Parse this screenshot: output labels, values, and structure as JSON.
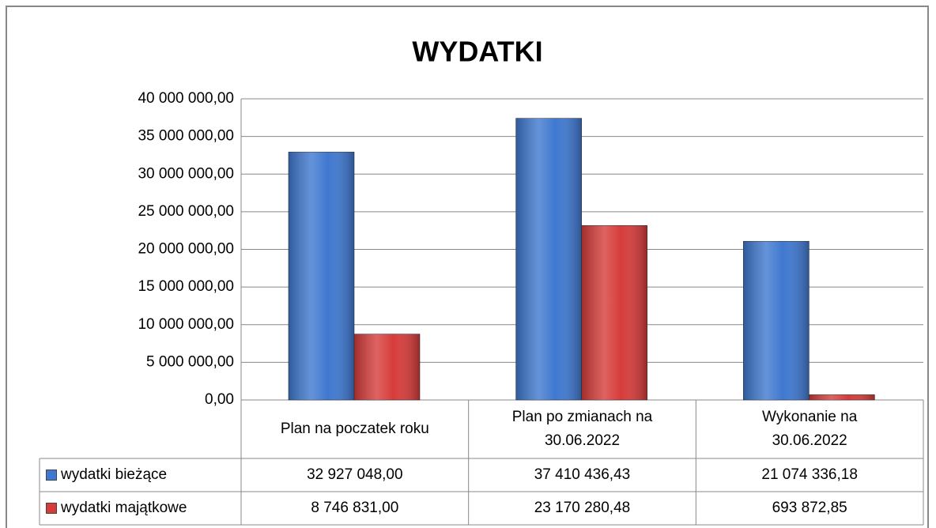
{
  "chart_data": {
    "type": "bar",
    "title": "WYDATKI",
    "categories": [
      "Plan na poczatek roku",
      "Plan po zmianach na 30.06.2022",
      "Wykonanie na 30.06.2022"
    ],
    "series": [
      {
        "name": "wydatki bieżące",
        "color": "#3f78d0",
        "values": [
          32927048.0,
          37410436.43,
          21074336.18
        ],
        "value_labels": [
          "32 927 048,00",
          "37 410 436,43",
          "21 074 336,18"
        ]
      },
      {
        "name": "wydatki majątkowe",
        "color": "#d63c3a",
        "values": [
          8746831.0,
          23170280.48,
          693872.85
        ],
        "value_labels": [
          "8 746 831,00",
          "23 170 280,48",
          "693 872,85"
        ]
      }
    ],
    "ylim": [
      0,
      40000000
    ],
    "yticks": [
      {
        "value": 0,
        "label": "0,00"
      },
      {
        "value": 5000000,
        "label": "5 000 000,00"
      },
      {
        "value": 10000000,
        "label": "10 000 000,00"
      },
      {
        "value": 15000000,
        "label": "15 000 000,00"
      },
      {
        "value": 20000000,
        "label": "20 000 000,00"
      },
      {
        "value": 25000000,
        "label": "25 000 000,00"
      },
      {
        "value": 30000000,
        "label": "30 000 000,00"
      },
      {
        "value": 35000000,
        "label": "35 000 000,00"
      },
      {
        "value": 40000000,
        "label": "40 000 000,00"
      }
    ],
    "grid": true
  }
}
